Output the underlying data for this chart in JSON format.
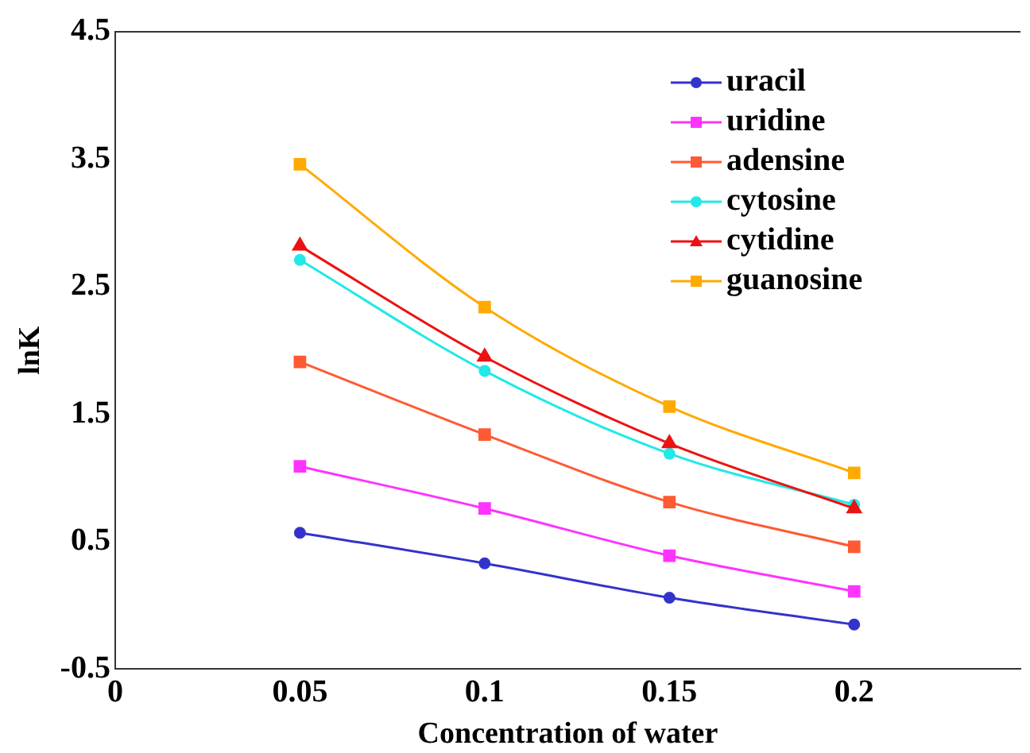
{
  "chart_data": {
    "type": "line",
    "xlabel": "Concentration of water",
    "ylabel": "lnK",
    "x": [
      0.05,
      0.1,
      0.15,
      0.2
    ],
    "xlim": [
      0,
      0.245
    ],
    "xticks": [
      0,
      0.05,
      0.1,
      0.15,
      0.2
    ],
    "ylim": [
      -0.5,
      4.5
    ],
    "yticks": [
      -0.5,
      0.5,
      1.5,
      2.5,
      3.5,
      4.5
    ],
    "grid": false,
    "legend": "top right",
    "line_style": "solid",
    "series": [
      {
        "name": "uracil",
        "color": "#3333cc",
        "marker": "circle",
        "values": [
          0.57,
          0.33,
          0.06,
          -0.15
        ]
      },
      {
        "name": "uridine",
        "color": "#ff33ff",
        "marker": "square",
        "values": [
          1.09,
          0.76,
          0.39,
          0.11
        ]
      },
      {
        "name": "adensine",
        "color": "#ff5a33",
        "marker": "square",
        "values": [
          1.91,
          1.34,
          0.81,
          0.46
        ]
      },
      {
        "name": "cytosine",
        "color": "#22e8e8",
        "marker": "circle",
        "values": [
          2.71,
          1.84,
          1.19,
          0.79
        ]
      },
      {
        "name": "cytidine",
        "color": "#ee1111",
        "marker": "triangle",
        "values": [
          2.82,
          1.95,
          1.27,
          0.76
        ]
      },
      {
        "name": "guanosine",
        "color": "#ffaa00",
        "marker": "square",
        "values": [
          3.46,
          2.34,
          1.56,
          1.04
        ]
      }
    ]
  }
}
